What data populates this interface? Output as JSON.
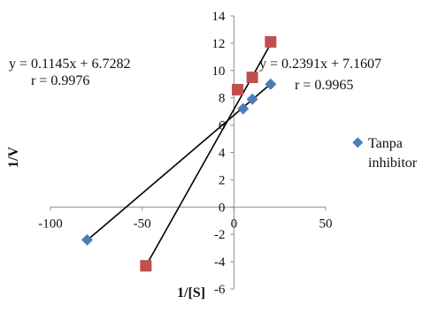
{
  "chart_data": {
    "type": "scatter",
    "xlabel": "1/[S]",
    "ylabel": "1/V",
    "xlim": [
      -100,
      50
    ],
    "ylim": [
      -6,
      14
    ],
    "x_ticks": [
      -100,
      -50,
      0,
      50
    ],
    "y_ticks": [
      -6,
      -4,
      -2,
      0,
      2,
      4,
      6,
      8,
      10,
      12,
      14
    ],
    "grid": false,
    "legend_position": "right",
    "series": [
      {
        "name": "Tanpa inhibitor",
        "marker": "diamond",
        "color": "#4a7ebb",
        "points": [
          [
            -80,
            -2.4
          ],
          [
            5,
            7.2
          ],
          [
            10,
            7.9
          ],
          [
            20,
            9.0
          ]
        ],
        "trendline": {
          "slope": 0.1145,
          "intercept": 6.7282,
          "x_range": [
            -80,
            20
          ]
        },
        "equation": "y = 0.1145x + 6.7282",
        "r_label": "r = 0.9976"
      },
      {
        "marker": "square",
        "color": "#c0504d",
        "points": [
          [
            -48,
            -4.3
          ],
          [
            2,
            8.6
          ],
          [
            10,
            9.5
          ],
          [
            20,
            12.1
          ]
        ],
        "trendline": {
          "slope": 0.2391,
          "intercept": 7.1607,
          "x_range": [
            -48,
            20
          ]
        },
        "equation": "y = 0.2391x + 7.1607",
        "r_label": "r = 0.9965"
      }
    ]
  }
}
